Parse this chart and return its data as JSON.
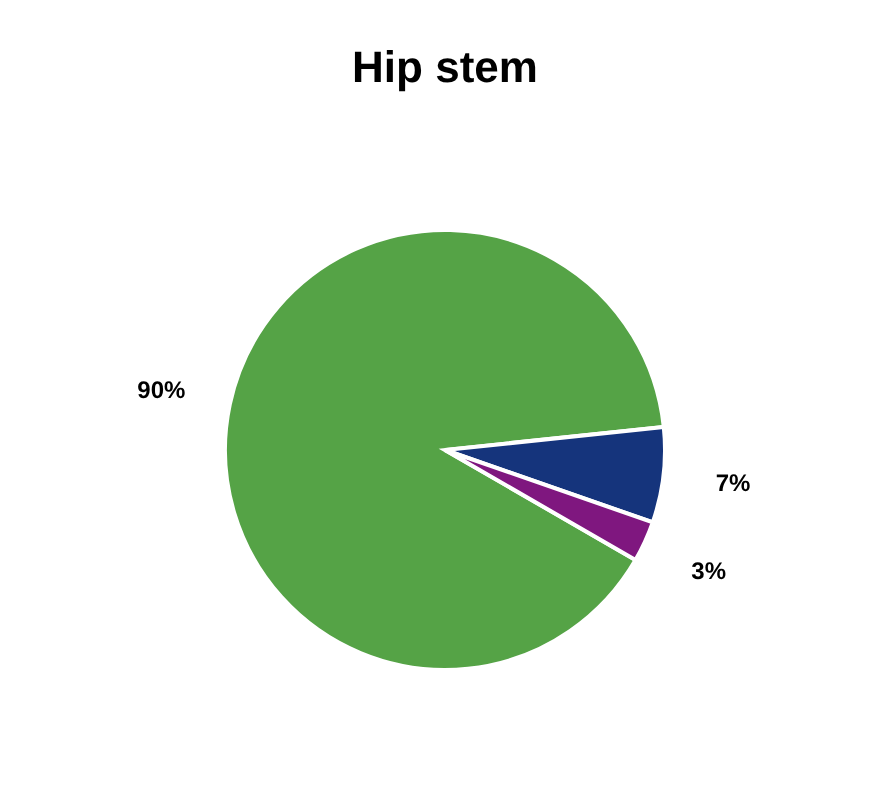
{
  "chart_data": {
    "type": "pie",
    "title": "Hip stem",
    "categories": [
      null,
      null,
      null
    ],
    "values": [
      90,
      7,
      3
    ],
    "colors": [
      "#55a346",
      "#15347c",
      "#7f177f"
    ],
    "value_labels": [
      "90%",
      "7%",
      "3%"
    ],
    "legend": false
  }
}
